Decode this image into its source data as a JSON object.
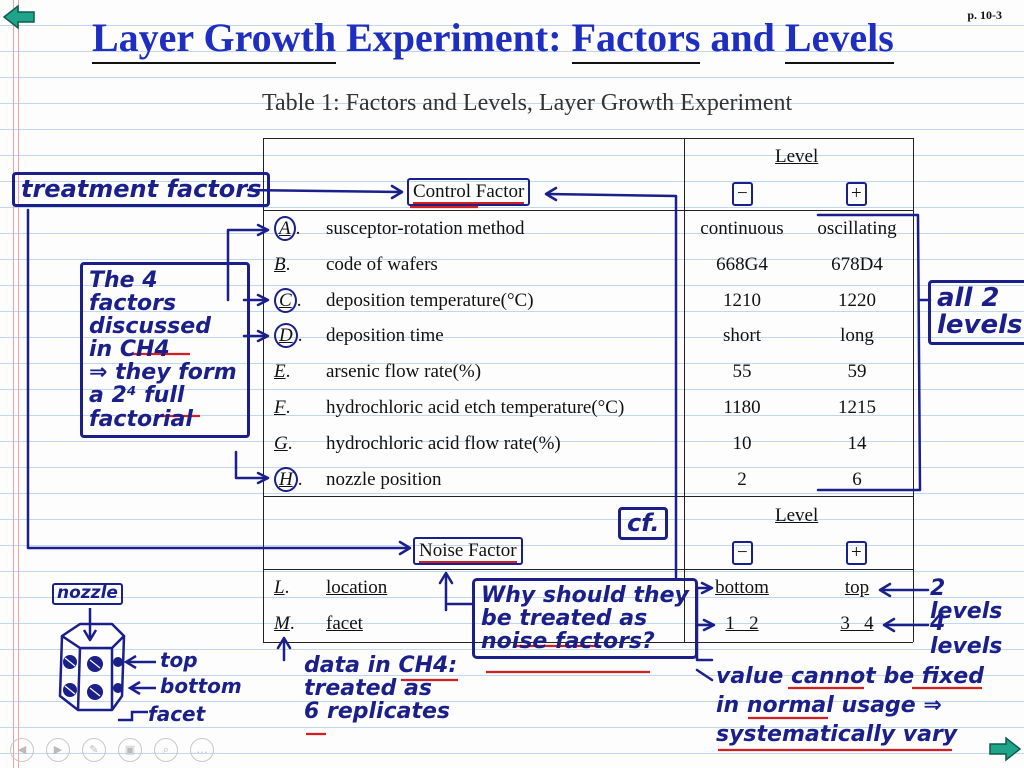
{
  "page_number": "p. 10-3",
  "title": {
    "part1": "Layer Growth",
    "part2": " Experiment: ",
    "part3": "Factors",
    "part4": " and ",
    "part5": "Levels"
  },
  "caption": "Table 1: Factors and Levels, Layer Growth Experiment",
  "table": {
    "level_header": "Level",
    "control_header": "Control Factor",
    "noise_header": "Noise Factor",
    "minus": "−",
    "plus": "+",
    "control_factors": [
      {
        "id": "A",
        "name": "susceptor-rotation method",
        "minus": "continuous",
        "plus": "oscillating"
      },
      {
        "id": "B",
        "name": "code of wafers",
        "minus": "668G4",
        "plus": "678D4"
      },
      {
        "id": "C",
        "name": "deposition temperature(°C)",
        "minus": "1210",
        "plus": "1220"
      },
      {
        "id": "D",
        "name": "deposition time",
        "minus": "short",
        "plus": "long"
      },
      {
        "id": "E",
        "name": "arsenic flow rate(%)",
        "minus": "55",
        "plus": "59"
      },
      {
        "id": "F",
        "name": "hydrochloric acid etch temperature(°C)",
        "minus": "1180",
        "plus": "1215"
      },
      {
        "id": "G",
        "name": "hydrochloric acid flow rate(%)",
        "minus": "10",
        "plus": "14"
      },
      {
        "id": "H",
        "name": "nozzle position",
        "minus": "2",
        "plus": "6"
      }
    ],
    "noise_factors": [
      {
        "id": "L",
        "name": "location",
        "minus": "bottom",
        "plus": "top"
      },
      {
        "id": "M",
        "name": "facet",
        "minus": "1   2",
        "plus": "3   4"
      }
    ]
  },
  "annotations": {
    "treatment_factors": "treatment factors",
    "four_factors": [
      "The 4 factors",
      "discussed",
      "in CH4",
      "⇒ they form",
      "a 2⁴ full",
      "factorial"
    ],
    "all_2_levels": [
      "all 2",
      "levels"
    ],
    "cf": "cf.",
    "why": [
      "Why should they",
      "be treated as",
      "noise factors?"
    ],
    "two_levels": "2 levels",
    "four_levels": "4 levels",
    "data_ch4": [
      "data in CH4:",
      "treated as",
      "6 replicates"
    ],
    "value_cannot": [
      "value cannot be fixed",
      "in normal usage ⇒",
      "systematically vary"
    ],
    "nozzle": "nozzle",
    "top": "top",
    "bottom": "bottom",
    "facet": "facet"
  },
  "nav_icons": [
    "prev-icon",
    "next-icon",
    "pen-icon",
    "pages-icon",
    "zoom-icon",
    "more-icon"
  ]
}
